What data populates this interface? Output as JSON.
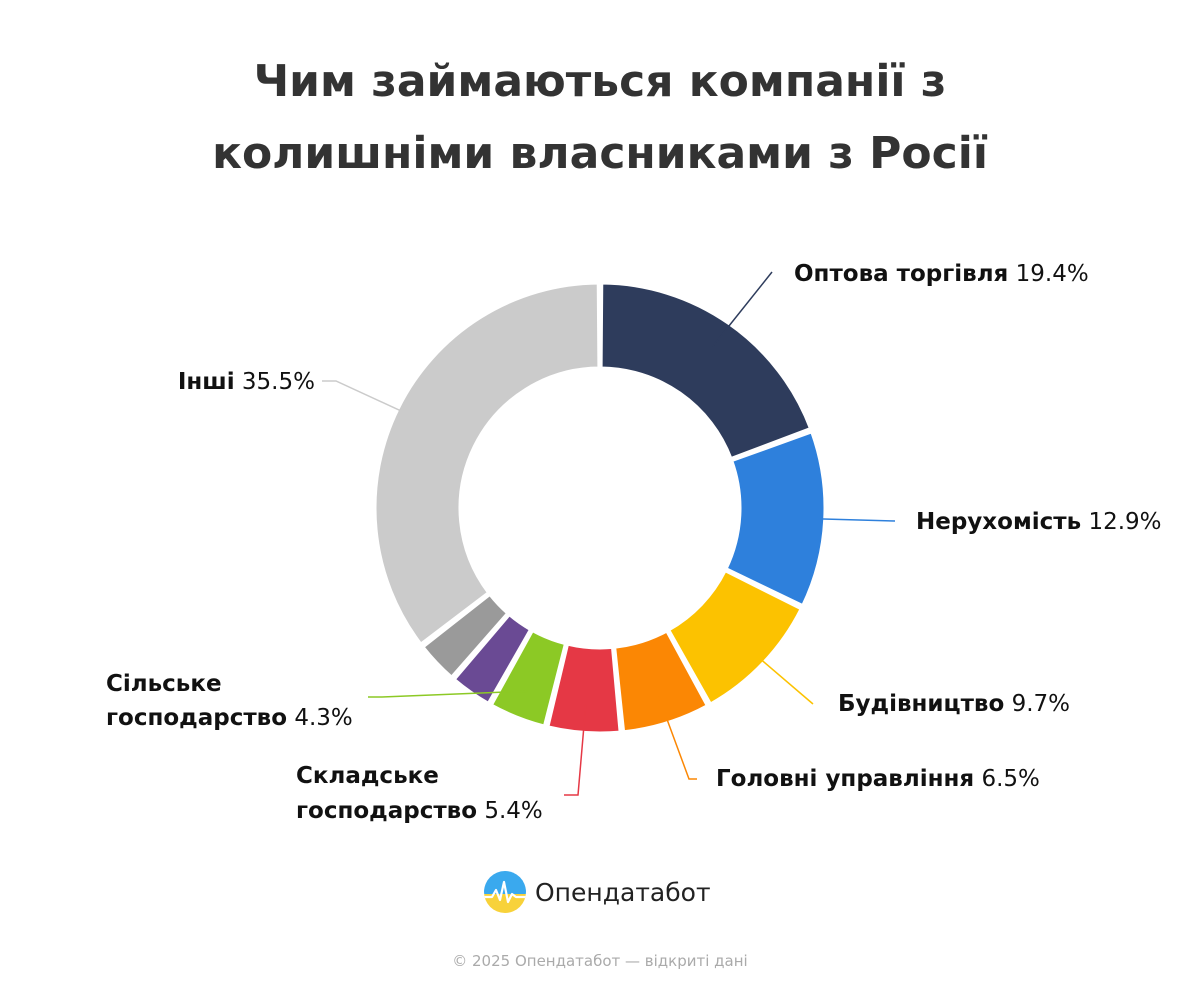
{
  "header": {
    "title_line1": "Чим займаються компанії з",
    "title_line2": "колишніми власниками з Росії"
  },
  "chart_data": {
    "type": "donut",
    "title": "Чим займаються компанії з колишніми власниками з Росії",
    "unit": "%",
    "slices": [
      {
        "name": "Оптова торгівля",
        "label_lines": [
          "Оптова торгівля"
        ],
        "value": 19.4,
        "color": "#2e3c5c",
        "labeled": true
      },
      {
        "name": "Нерухомість",
        "label_lines": [
          "Нерухомість"
        ],
        "value": 12.9,
        "color": "#2e80dc",
        "labeled": true
      },
      {
        "name": "Будівництво",
        "label_lines": [
          "Будівництво"
        ],
        "value": 9.7,
        "color": "#fcc200",
        "labeled": true
      },
      {
        "name": "Головні управління",
        "label_lines": [
          "Головні управління"
        ],
        "value": 6.5,
        "color": "#fb8704",
        "labeled": true
      },
      {
        "name": "Складське господарство",
        "label_lines": [
          "Складське",
          "господарство"
        ],
        "value": 5.4,
        "color": "#e53845",
        "labeled": true
      },
      {
        "name": "Сільське господарство",
        "label_lines": [
          "Сільське",
          "господарство"
        ],
        "value": 4.3,
        "color": "#8cc925",
        "labeled": true
      },
      {
        "name": "",
        "label_lines": [],
        "value": 3.2,
        "color": "#6a4a94",
        "labeled": false
      },
      {
        "name": "",
        "label_lines": [],
        "value": 3.2,
        "color": "#9a9a9a",
        "labeled": false
      },
      {
        "name": "Інші",
        "label_lines": [
          "Інші"
        ],
        "value": 35.5,
        "color": "#cbcbcb",
        "labeled": true
      }
    ]
  },
  "brand": {
    "name": "Опендатабот",
    "logo_icon": "opendatabot-logo-icon"
  },
  "footer": {
    "text": "© 2025 Опендатабот — відкриті дані"
  }
}
